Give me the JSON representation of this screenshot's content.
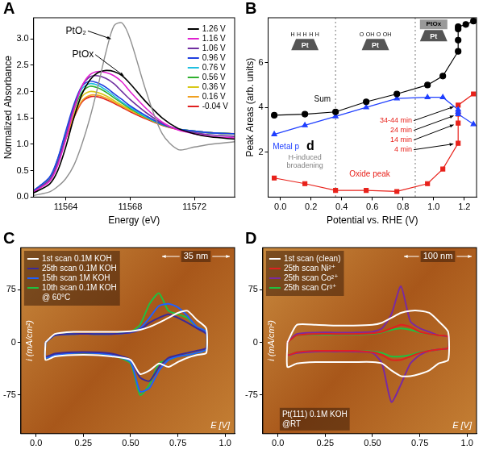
{
  "chart_data": [
    {
      "panel": "A",
      "type": "line",
      "xlabel": "Energy (eV)",
      "ylabel": "Normalized Absorbance",
      "x": [
        11562,
        11563,
        11563.5,
        11564,
        11564.5,
        11565,
        11565.5,
        11566,
        11566.5,
        11567,
        11567.5,
        11568,
        11569,
        11570,
        11571,
        11572,
        11573,
        11574.5
      ],
      "series": [
        {
          "color": "#909090",
          "values": [
            0.03,
            0.1,
            0.2,
            0.35,
            0.6,
            1.0,
            1.5,
            2.1,
            2.75,
            3.25,
            3.3,
            3.0,
            2.0,
            1.2,
            0.9,
            0.95,
            1.0,
            1.05
          ]
        },
        {
          "name": "1.26 V",
          "color": "#000000",
          "values": [
            0.08,
            0.25,
            0.5,
            0.95,
            1.5,
            1.95,
            2.22,
            2.36,
            2.4,
            2.38,
            2.3,
            2.15,
            1.8,
            1.5,
            1.3,
            1.2,
            1.14,
            1.1
          ]
        },
        {
          "name": "1.16 V",
          "color": "#e020d0",
          "values": [
            0.1,
            0.3,
            0.6,
            1.1,
            1.65,
            2.1,
            2.32,
            2.38,
            2.36,
            2.3,
            2.18,
            2.0,
            1.68,
            1.42,
            1.27,
            1.2,
            1.15,
            1.12
          ]
        },
        {
          "name": "1.06 V",
          "color": "#7030a0",
          "values": [
            0.1,
            0.33,
            0.65,
            1.15,
            1.7,
            2.1,
            2.28,
            2.3,
            2.25,
            2.15,
            2.0,
            1.85,
            1.6,
            1.4,
            1.28,
            1.22,
            1.18,
            1.15
          ]
        },
        {
          "name": "0.96 V",
          "color": "#2040e0",
          "values": [
            0.12,
            0.38,
            0.73,
            1.25,
            1.75,
            2.1,
            2.2,
            2.16,
            2.08,
            1.96,
            1.85,
            1.73,
            1.54,
            1.38,
            1.29,
            1.25,
            1.22,
            1.2
          ]
        },
        {
          "name": "0.76 V",
          "color": "#20c0e0",
          "values": [
            0.12,
            0.37,
            0.72,
            1.22,
            1.7,
            2.05,
            2.15,
            2.12,
            2.03,
            1.92,
            1.8,
            1.7,
            1.52,
            1.38,
            1.29,
            1.25,
            1.22,
            1.2
          ]
        },
        {
          "name": "0.56 V",
          "color": "#30b030",
          "values": [
            0.12,
            0.37,
            0.7,
            1.2,
            1.65,
            1.98,
            2.1,
            2.07,
            1.99,
            1.88,
            1.78,
            1.68,
            1.51,
            1.37,
            1.29,
            1.25,
            1.22,
            1.2
          ]
        },
        {
          "name": "0.36 V",
          "color": "#d8c818",
          "values": [
            0.12,
            0.36,
            0.68,
            1.15,
            1.58,
            1.9,
            2.0,
            1.98,
            1.92,
            1.83,
            1.74,
            1.66,
            1.5,
            1.37,
            1.29,
            1.25,
            1.22,
            1.2
          ]
        },
        {
          "name": "0.16 V",
          "color": "#f0a020",
          "values": [
            0.12,
            0.35,
            0.66,
            1.12,
            1.52,
            1.82,
            1.93,
            1.93,
            1.88,
            1.8,
            1.72,
            1.64,
            1.5,
            1.37,
            1.29,
            1.25,
            1.22,
            1.2
          ]
        },
        {
          "name": "-0.04 V",
          "color": "#e02020",
          "values": [
            0.12,
            0.35,
            0.65,
            1.1,
            1.5,
            1.8,
            1.9,
            1.9,
            1.85,
            1.78,
            1.7,
            1.62,
            1.48,
            1.36,
            1.28,
            1.24,
            1.22,
            1.2
          ]
        }
      ],
      "xlim": [
        11562,
        11574.5
      ],
      "xticks": [
        11564,
        11568,
        11572
      ],
      "ylim": [
        0,
        3.4
      ],
      "yticks": [
        {
          "value": 0,
          "label": "0.0"
        },
        0.5,
        {
          "value": 1,
          "label": "1.0"
        },
        1.5,
        {
          "value": 2,
          "label": "2.0"
        },
        2.5,
        {
          "value": 3,
          "label": "3.0"
        }
      ],
      "grid": false,
      "legend": "top-right",
      "annotations": [
        {
          "text": "PtO₂",
          "x": 11564,
          "y": 3.15,
          "arrow_to": [
            11566.8,
            3.0
          ]
        },
        {
          "text": "PtOx",
          "x": 11564.4,
          "y": 2.7,
          "arrow_to": [
            11567.6,
            2.3
          ]
        }
      ]
    },
    {
      "panel": "B",
      "type": "scatter",
      "xlabel": "Potential vs. RHE (V)",
      "ylabel": "Peak Areas (arb. units)",
      "series": [
        {
          "name": "Sum",
          "color": "#000000",
          "marker": "circle",
          "line_style": "solid",
          "label_x": 0.22,
          "label_y": 4.35,
          "x": [
            -0.04,
            0.16,
            0.36,
            0.56,
            0.76,
            0.96,
            1.06,
            1.16,
            1.16,
            1.16,
            1.16,
            1.21,
            1.26
          ],
          "values": [
            3.65,
            3.7,
            3.8,
            4.25,
            4.6,
            5.0,
            5.4,
            6.5,
            7.0,
            7.5,
            7.6,
            7.7,
            7.85
          ]
        },
        {
          "name": "Metal p",
          "color": "#1f3fff",
          "marker": "triangle",
          "line_style": "solid",
          "label_x": -0.05,
          "label_y": 2.25,
          "x": [
            -0.04,
            0.16,
            0.36,
            0.56,
            0.76,
            0.96,
            1.06,
            1.16,
            1.16,
            1.16,
            1.26
          ],
          "values": [
            2.8,
            3.2,
            3.6,
            4.0,
            4.4,
            4.45,
            4.45,
            3.9,
            3.8,
            3.7,
            3.25
          ]
        },
        {
          "name": "Oxide peak",
          "color": "#e8221b",
          "marker": "square",
          "line_style": "solid",
          "label_x": 0.45,
          "label_y": 1.0,
          "x": [
            -0.04,
            0.16,
            0.36,
            0.56,
            0.76,
            0.96,
            1.06,
            1.16,
            1.16,
            1.16,
            1.16,
            1.26
          ],
          "values": [
            0.85,
            0.6,
            0.3,
            0.3,
            0.25,
            0.6,
            1.25,
            2.4,
            3.3,
            3.7,
            4.1,
            4.6
          ]
        }
      ],
      "xlim": [
        -0.08,
        1.28
      ],
      "xticks": [
        {
          "value": 0,
          "label": "0.0"
        },
        0.2,
        0.4,
        0.6,
        0.8,
        {
          "value": 1,
          "label": "1.0"
        },
        1.2
      ],
      "ylim": [
        0,
        8
      ],
      "yticks": [
        2,
        4,
        6
      ],
      "grid": false,
      "vlines": [
        0.36,
        0.88
      ],
      "annotations": [
        {
          "text": "H-induced broadening",
          "x": 0.16,
          "y": 1.75,
          "color": "#808080"
        },
        {
          "text": "d",
          "x": 0.17,
          "y": 2.25
        }
      ],
      "time_labels": [
        {
          "text": "4 min",
          "x": 1.16,
          "y": 2.4
        },
        {
          "text": "14 min",
          "x": 1.16,
          "y": 3.3
        },
        {
          "text": "24 min",
          "x": 1.16,
          "y": 3.7
        },
        {
          "text": "34-44 min",
          "x": 1.16,
          "y": 4.1
        }
      ],
      "icons": [
        {
          "x": 0.16,
          "y": 6.8,
          "label": "Pt",
          "adsorbates": [
            "H",
            "H",
            "H",
            "H",
            "H"
          ]
        },
        {
          "x": 0.62,
          "y": 6.8,
          "label": "Pt",
          "adsorbates": [
            "O",
            "OH",
            "O",
            "OH"
          ]
        },
        {
          "x": 1.0,
          "y": 7.2,
          "label": "Pt",
          "layer": "PtOx"
        }
      ]
    },
    {
      "panel": "C",
      "type": "line",
      "xlabel": "E [V]",
      "ylabel": "i (mA/cm²)",
      "scale_bar": "35 nm",
      "x": [
        0.05,
        0.1,
        0.2,
        0.3,
        0.4,
        0.5,
        0.55,
        0.6,
        0.65,
        0.7,
        0.75,
        0.8,
        0.85,
        0.9,
        0.9,
        0.85,
        0.8,
        0.75,
        0.7,
        0.65,
        0.6,
        0.55,
        0.5,
        0.4,
        0.3,
        0.2,
        0.1,
        0.05,
        0.05
      ],
      "series": [
        {
          "name": "1st scan 0.1M KOH",
          "color": "#ffffff",
          "values": [
            0,
            12,
            15,
            15,
            15,
            16,
            18,
            22,
            28,
            35,
            42,
            45,
            32,
            20,
            -15,
            -18,
            -22,
            -28,
            -35,
            -30,
            -40,
            -45,
            -25,
            -20,
            -18,
            -18,
            -20,
            -25,
            0
          ]
        },
        {
          "name": "25th scan 0.1M KOH",
          "color": "#3a2a9a",
          "values": [
            0,
            10,
            12,
            12,
            12,
            14,
            18,
            28,
            35,
            40,
            35,
            28,
            20,
            12,
            -8,
            -12,
            -15,
            -18,
            -22,
            -35,
            -55,
            -50,
            -25,
            -16,
            -14,
            -14,
            -16,
            -20,
            0
          ]
        },
        {
          "name": "15th scan 1M KOH",
          "color": "#2060ff",
          "values": [
            0,
            10,
            12,
            12,
            12,
            14,
            20,
            35,
            52,
            55,
            50,
            38,
            22,
            15,
            -10,
            -15,
            -18,
            -20,
            -25,
            -40,
            -65,
            -70,
            -28,
            -18,
            -15,
            -15,
            -18,
            -22,
            0
          ]
        },
        {
          "name": "10th scan 0.1M KOH",
          "color": "#20c040",
          "values": [
            0,
            10,
            12,
            12,
            12,
            15,
            25,
            55,
            70,
            45,
            40,
            35,
            22,
            15,
            -10,
            -15,
            -18,
            -20,
            -25,
            -30,
            -60,
            -75,
            -30,
            -18,
            -15,
            -15,
            -18,
            -22,
            0
          ]
        }
      ],
      "legend": "top-left",
      "legend_note": "@ 60°C",
      "xlim": [
        -0.08,
        1.05
      ],
      "xticks": [
        {
          "value": 0,
          "label": "0.0"
        },
        0.25,
        {
          "value": 0.5,
          "label": "0.50"
        },
        0.75,
        {
          "value": 1,
          "label": "1.0"
        }
      ],
      "ylim": [
        -130,
        135
      ],
      "yticks": [
        -75,
        0,
        75
      ],
      "grid": false
    },
    {
      "panel": "D",
      "type": "line",
      "xlabel": "E [V]",
      "ylabel": "i (mA/cm²)",
      "scale_bar": "100 nm",
      "x": [
        0.05,
        0.1,
        0.2,
        0.3,
        0.4,
        0.5,
        0.55,
        0.6,
        0.65,
        0.7,
        0.75,
        0.8,
        0.85,
        0.9,
        0.9,
        0.85,
        0.8,
        0.75,
        0.7,
        0.65,
        0.6,
        0.55,
        0.5,
        0.4,
        0.3,
        0.2,
        0.1,
        0.05,
        0.05
      ],
      "series": [
        {
          "name": "1st scan (clean)",
          "color": "#ffffff",
          "values": [
            0,
            25,
            25,
            24,
            24,
            25,
            28,
            35,
            42,
            45,
            45,
            42,
            30,
            15,
            -25,
            -30,
            -40,
            -45,
            -48,
            -48,
            -40,
            -30,
            -28,
            -28,
            -28,
            -28,
            -30,
            -35,
            0
          ]
        },
        {
          "name": "25th scan Ni²⁺",
          "color": "#e02020",
          "values": [
            0,
            10,
            12,
            12,
            12,
            13,
            15,
            20,
            25,
            22,
            15,
            12,
            10,
            8,
            -8,
            -10,
            -12,
            -15,
            -20,
            -25,
            -25,
            -18,
            -14,
            -12,
            -12,
            -12,
            -14,
            -18,
            0
          ]
        },
        {
          "name": "25th scan Co²⁺",
          "color": "#7a2aa0",
          "values": [
            0,
            12,
            14,
            14,
            14,
            15,
            20,
            40,
            80,
            30,
            20,
            15,
            10,
            8,
            -8,
            -10,
            -12,
            -18,
            -30,
            -60,
            -85,
            -30,
            -15,
            -13,
            -13,
            -13,
            -15,
            -18,
            0
          ]
        },
        {
          "name": "25th scan Cr³⁺",
          "color": "#20c040",
          "values": [
            0,
            10,
            11,
            11,
            11,
            12,
            14,
            18,
            20,
            18,
            14,
            12,
            10,
            8,
            -8,
            -10,
            -12,
            -14,
            -18,
            -20,
            -20,
            -15,
            -13,
            -12,
            -12,
            -12,
            -14,
            -18,
            0
          ]
        }
      ],
      "legend": "top-left",
      "notes": [
        "Pt(111) 0.1M KOH",
        "@RT"
      ],
      "xlim": [
        -0.08,
        1.05
      ],
      "xticks": [
        {
          "value": 0,
          "label": "0.0"
        },
        0.25,
        {
          "value": 0.5,
          "label": "0.50"
        },
        0.75,
        {
          "value": 1,
          "label": "1.0"
        }
      ],
      "ylim": [
        -130,
        135
      ],
      "yticks": [
        -75,
        0,
        75
      ],
      "grid": false
    }
  ]
}
